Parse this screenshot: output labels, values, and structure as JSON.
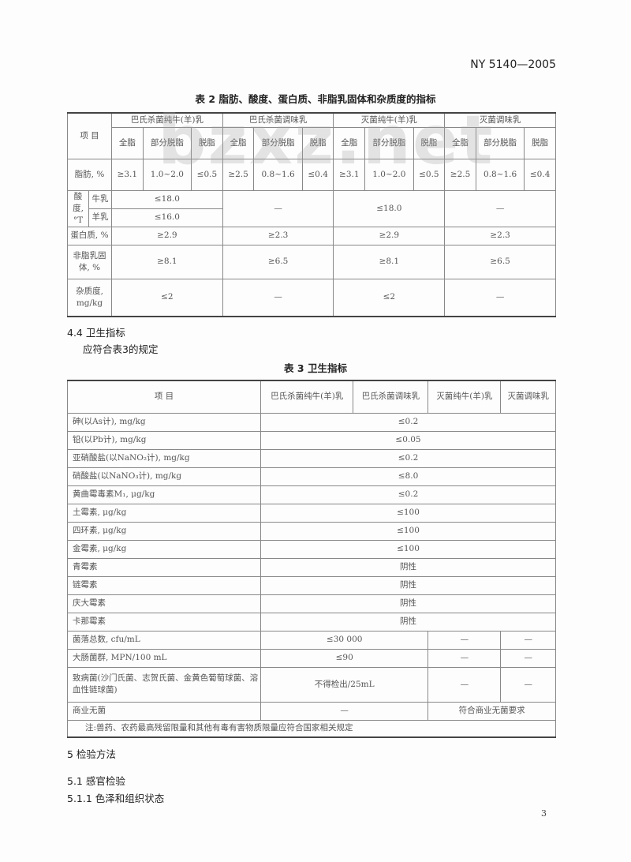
{
  "header": {
    "standard_no": "NY 5140—2005",
    "page_number": "3",
    "watermark": "bzxz.net"
  },
  "table2": {
    "caption": "表 2  脂肪、酸度、蛋白质、非脂乳固体和杂质度的指标",
    "item": "项  目",
    "groups": [
      "巴氏杀菌纯牛(羊)乳",
      "巴氏杀菌调味乳",
      "灭菌纯牛(羊)乳",
      "灭菌调味乳"
    ],
    "sub": [
      "全脂",
      "部分脱脂",
      "脱脂"
    ],
    "fat_label": "脂肪, %",
    "fat": [
      "≥3.1",
      "1.0~2.0",
      "≤0.5",
      "≥2.5",
      "0.8~1.6",
      "≤0.4",
      "≥3.1",
      "1.0~2.0",
      "≤0.5",
      "≥2.5",
      "0.8~1.6",
      "≤0.4"
    ],
    "acid_label": "酸度, °T",
    "acid_cow": "牛乳",
    "acid_goat": "羊乳",
    "acid": [
      "≤18.0",
      "≤16.0",
      "—",
      "≤18.0",
      "—"
    ],
    "protein_label": "蛋白质, %",
    "protein": [
      "≥2.9",
      "≥2.3",
      "≥2.9",
      "≥2.3"
    ],
    "solids_label": "非脂乳固体, %",
    "solids": [
      "≥8.1",
      "≥6.5",
      "≥8.1",
      "≥6.5"
    ],
    "impurity_label": "杂质度, mg/kg",
    "impurity": [
      "≤2",
      "—",
      "≤2",
      "—"
    ]
  },
  "section_4_4": {
    "title": "4.4  卫生指标",
    "text": "应符合表3的规定"
  },
  "table3": {
    "caption": "表 3  卫生指标",
    "headers": [
      "项      目",
      "巴氏杀菌纯牛(羊)乳",
      "巴氏杀菌调味乳",
      "灭菌纯牛(羊)乳",
      "灭菌调味乳"
    ],
    "rows": [
      {
        "item": "砷(以As计), mg/kg",
        "value": "≤0.2"
      },
      {
        "item": "铅(以Pb计), mg/kg",
        "value": "≤0.05"
      },
      {
        "item": "亚硝酸盐(以NaNO₂计), mg/kg",
        "value": "≤0.2"
      },
      {
        "item": "硝酸盐(以NaNO₃计), mg/kg",
        "value": "≤8.0"
      },
      {
        "item": "黄曲霉毒素M₁, μg/kg",
        "value": "≤0.2"
      },
      {
        "item": "土霉素, μg/kg",
        "value": "≤100"
      },
      {
        "item": "四环素, μg/kg",
        "value": "≤100"
      },
      {
        "item": "金霉素, μg/kg",
        "value": "≤100"
      },
      {
        "item": "青霉素",
        "value": "阴性"
      },
      {
        "item": "链霉素",
        "value": "阴性"
      },
      {
        "item": "庆大霉素",
        "value": "阴性"
      },
      {
        "item": "卡那霉素",
        "value": "阴性"
      }
    ],
    "micro": [
      {
        "item": "菌落总数, cfu/mL",
        "value": "≤30 000",
        "v3": "—",
        "v4": "—"
      },
      {
        "item": "大肠菌群, MPN/100 mL",
        "value": "≤90",
        "v3": "—",
        "v4": "—"
      },
      {
        "item": "致病菌(沙门氏菌、志贺氏菌、金黄色葡萄球菌、溶血性链球菌)",
        "value": "不得检出/25mL",
        "v3": "—",
        "v4": "—"
      },
      {
        "item": "商业无菌",
        "value": "—",
        "v3": "符合商业无菌要求"
      }
    ],
    "note": "注:兽药、农药最高残留限量和其他有毒有害物质限量应符合国家相关规定"
  },
  "section_5": {
    "title": "5  检验方法",
    "s51": "5.1  感官检验",
    "s511": "5.1.1  色泽和组织状态"
  }
}
